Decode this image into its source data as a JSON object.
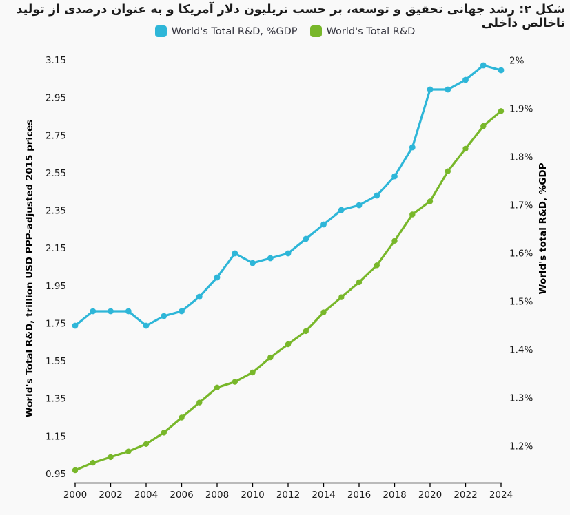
{
  "page": {
    "title": "شکل ۲: رشد جهانی تحقیق و توسعه، بر حسب تریلیون دلار آمریکا و به عنوان درصدی از تولید ناخالص داخلی"
  },
  "legend": [
    {
      "label": "World's Total R&D, %GDP",
      "color": "#2eb6d8"
    },
    {
      "label": "World's Total R&D",
      "color": "#78b72a"
    }
  ],
  "chart_data": {
    "type": "line",
    "x": [
      2000,
      2001,
      2002,
      2003,
      2004,
      2005,
      2006,
      2007,
      2008,
      2009,
      2010,
      2011,
      2012,
      2013,
      2014,
      2015,
      2016,
      2017,
      2018,
      2019,
      2020,
      2021,
      2022,
      2023,
      2024
    ],
    "series": [
      {
        "name": "World's Total R&D, %GDP",
        "axis": "right",
        "color": "#2eb6d8",
        "values": [
          1.45,
          1.48,
          1.48,
          1.48,
          1.45,
          1.47,
          1.48,
          1.51,
          1.55,
          1.6,
          1.58,
          1.59,
          1.6,
          1.63,
          1.66,
          1.69,
          1.7,
          1.72,
          1.76,
          1.82,
          1.94,
          1.94,
          1.96,
          1.99,
          1.98
        ]
      },
      {
        "name": "World's Total R&D",
        "axis": "left",
        "color": "#78b72a",
        "values": [
          0.97,
          1.01,
          1.04,
          1.07,
          1.11,
          1.17,
          1.25,
          1.33,
          1.41,
          1.44,
          1.49,
          1.57,
          1.64,
          1.71,
          1.81,
          1.89,
          1.97,
          2.06,
          2.19,
          2.33,
          2.4,
          2.56,
          2.68,
          2.8,
          2.88
        ]
      }
    ],
    "left_axis": {
      "label": "World's Total R&D, trillion USD PPP-adjusted 2015 prices",
      "min": 0.95,
      "max": 3.15,
      "tick_values": [
        0.95,
        1.15,
        1.35,
        1.55,
        1.75,
        1.95,
        2.15,
        2.35,
        2.55,
        2.75,
        2.95,
        3.15
      ],
      "tick_labels": [
        "0.95",
        "1.15",
        "1.35",
        "1.55",
        "1.75",
        "1.95",
        "2.15",
        "2.35",
        "2.55",
        "2.75",
        "2.95",
        "3.15"
      ]
    },
    "right_axis": {
      "label": "World's total R&D, %GDP",
      "min": 1.2,
      "max": 2.0,
      "tick_values": [
        1.2,
        1.3,
        1.4,
        1.5,
        1.6,
        1.7,
        1.8,
        1.9,
        2.0
      ],
      "tick_labels": [
        "1.2%",
        "1.3%",
        "1.4%",
        "1.5%",
        "1.6%",
        "1.7%",
        "1.8%",
        "1.9%",
        "2%"
      ]
    },
    "x_axis": {
      "tick_values": [
        2000,
        2002,
        2004,
        2006,
        2008,
        2010,
        2012,
        2014,
        2016,
        2018,
        2020,
        2022,
        2024
      ],
      "tick_labels": [
        "2000",
        "2002",
        "2004",
        "2006",
        "2008",
        "2010",
        "2012",
        "2014",
        "2016",
        "2018",
        "2020",
        "2022",
        "2024"
      ]
    },
    "grid": false,
    "legend_position": "top-center",
    "title": "شکل ۲: رشد جهانی تحقیق و توسعه، بر حسب تریلیون دلار آمریکا و به عنوان درصدی از تولید ناخالص داخلی"
  }
}
